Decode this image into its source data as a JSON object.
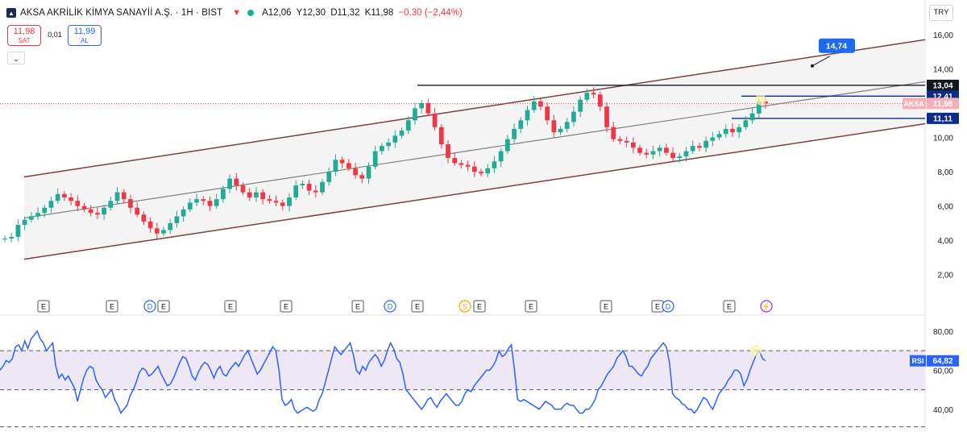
{
  "header": {
    "title": "AKSA AKRİLİK KİMYA SANAYİİ A.Ş. · 1H · BIST",
    "ohlc": {
      "open": "A12,06",
      "high": "Y12,30",
      "low": "D11,32",
      "close": "K11,98"
    },
    "change": "−0,30 (−2,44%)"
  },
  "trade": {
    "sell_price": "11,98",
    "sell_label": "SAT",
    "spread": "0,01",
    "buy_price": "11,99",
    "buy_label": "AL"
  },
  "currency": "TRY",
  "collapse_icon": "chevron-down-icon",
  "colors": {
    "up": "#22ab94",
    "down": "#f23645",
    "channel": "#7b3f3f",
    "level": "#0d2c8a",
    "rsi": "#2962ff",
    "rsi_band": "#ede7f6"
  },
  "events": [
    {
      "label": "E"
    },
    {
      "label": "E"
    },
    {
      "label": "D"
    },
    {
      "label": "E"
    },
    {
      "label": "E"
    },
    {
      "label": "E"
    },
    {
      "label": "E"
    },
    {
      "label": "D"
    },
    {
      "label": "E"
    },
    {
      "label": "S"
    },
    {
      "label": "E"
    },
    {
      "label": "E"
    },
    {
      "label": "E"
    },
    {
      "label": "E"
    },
    {
      "label": "D"
    },
    {
      "label": "E"
    },
    {
      "label": "⚡"
    }
  ],
  "chart_data": [
    {
      "type": "candlestick",
      "symbol": "AKSA",
      "scale": "linear",
      "grid": false,
      "y_ticks": [
        "16,00",
        "14,00",
        "12,00",
        "10,00",
        "8,00",
        "6,00",
        "4,00",
        "2,00"
      ],
      "ylim": [
        1,
        16.7
      ],
      "close_series": [
        4.1,
        4.2,
        4.9,
        5.2,
        5.4,
        5.6,
        5.9,
        6.3,
        6.7,
        6.5,
        6.3,
        6.0,
        5.8,
        5.6,
        5.5,
        5.9,
        6.3,
        6.8,
        6.4,
        5.9,
        5.5,
        5.1,
        4.7,
        4.4,
        4.6,
        5.0,
        5.4,
        5.8,
        6.2,
        6.4,
        6.3,
        6.0,
        6.4,
        7.0,
        7.6,
        7.2,
        6.8,
        6.5,
        6.8,
        6.4,
        6.3,
        6.2,
        6.0,
        6.5,
        7.2,
        7.3,
        6.9,
        6.8,
        7.4,
        8.0,
        8.7,
        8.5,
        8.2,
        7.8,
        7.6,
        8.3,
        9.2,
        9.5,
        9.7,
        10.1,
        10.4,
        11.0,
        11.7,
        12.0,
        11.4,
        10.6,
        9.6,
        8.8,
        8.5,
        8.4,
        8.3,
        8.0,
        7.9,
        8.2,
        8.6,
        9.2,
        9.9,
        10.5,
        11.0,
        11.6,
        12.1,
        11.8,
        11.0,
        10.3,
        10.5,
        10.9,
        11.5,
        12.2,
        12.6,
        12.5,
        11.8,
        10.6,
        9.9,
        9.8,
        9.7,
        9.4,
        9.1,
        9.0,
        9.2,
        9.4,
        9.1,
        8.8,
        8.9,
        9.2,
        9.5,
        9.4,
        9.8,
        10.0,
        10.2,
        10.5,
        10.3,
        10.6,
        11.0,
        11.4,
        12.1,
        11.98
      ],
      "annotations": {
        "resistance": "13,04",
        "level_upper": "12,41",
        "level_lower": "11,11",
        "last_price_label": "AKSA",
        "last_price": "11,98",
        "target": "14,74"
      },
      "channel": {
        "upper_start": 7.7,
        "upper_end": 15.7,
        "lower_start": 2.9,
        "lower_end": 10.8
      }
    },
    {
      "type": "line",
      "name": "RSI",
      "value_label": "64,82",
      "y_ticks": [
        "80,00",
        "60,00",
        "40,00"
      ],
      "ylim": [
        30,
        87
      ],
      "bands": [
        50,
        70
      ],
      "values": [
        60,
        62,
        65,
        64,
        66,
        72,
        73,
        70,
        75,
        71,
        76,
        78,
        80,
        76,
        74,
        70,
        72,
        74,
        62,
        56,
        58,
        55,
        57,
        54,
        51,
        44,
        50,
        56,
        60,
        62,
        61,
        55,
        52,
        50,
        46,
        48,
        50,
        45,
        42,
        38,
        40,
        42,
        47,
        50,
        54,
        59,
        61,
        60,
        57,
        58,
        60,
        62,
        58,
        55,
        52,
        53,
        56,
        60,
        64,
        67,
        66,
        62,
        57,
        55,
        59,
        62,
        64,
        63,
        60,
        56,
        60,
        62,
        58,
        57,
        60,
        62,
        64,
        62,
        65,
        68,
        70,
        66,
        62,
        58,
        60,
        63,
        66,
        69,
        72,
        70,
        60,
        45,
        42,
        43,
        45,
        40,
        38,
        39,
        40,
        41,
        40,
        39,
        40,
        45,
        48,
        54,
        60,
        66,
        72,
        70,
        68,
        70,
        72,
        74,
        68,
        60,
        58,
        62,
        60,
        64,
        66,
        68,
        66,
        62,
        65,
        70,
        74,
        71,
        66,
        64,
        58,
        50,
        48,
        46,
        44,
        42,
        40,
        42,
        45,
        46,
        43,
        41,
        44,
        46,
        48,
        46,
        44,
        42,
        42,
        44,
        48,
        50,
        49,
        52,
        54,
        56,
        58,
        60,
        60,
        62,
        65,
        70,
        67,
        68,
        71,
        73,
        60,
        45,
        44,
        45,
        44,
        43,
        42,
        41,
        40,
        42,
        44,
        43,
        42,
        40,
        40,
        40,
        42,
        43,
        42,
        42,
        40,
        38,
        38,
        40,
        40,
        42,
        45,
        50,
        52,
        55,
        58,
        60,
        62,
        66,
        68,
        70,
        67,
        62,
        62,
        60,
        58,
        57,
        60,
        62,
        66,
        68,
        70,
        72,
        74,
        72,
        64,
        48,
        46,
        45,
        43,
        42,
        40,
        40,
        38,
        40,
        43,
        46,
        45,
        42,
        40,
        44,
        48,
        50,
        52,
        55,
        57,
        60,
        60,
        58,
        52,
        55,
        60,
        64,
        68,
        70,
        66,
        64.82
      ]
    }
  ]
}
